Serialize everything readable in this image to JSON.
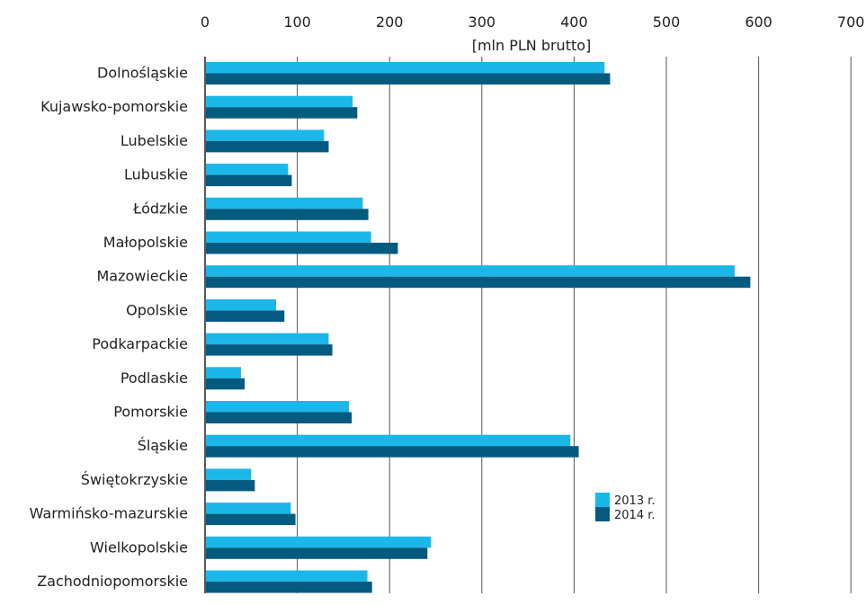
{
  "chart_data": {
    "type": "bar",
    "orientation": "horizontal",
    "title": "",
    "xlabel": "[mln PLN brutto]",
    "ylabel": "",
    "xlim": [
      0,
      700
    ],
    "xticks": [
      0,
      100,
      200,
      300,
      400,
      500,
      600,
      700
    ],
    "grid": true,
    "legend_position": "right",
    "categories": [
      "Dolnośląskie",
      "Kujawsko-pomorskie",
      "Lubelskie",
      "Lubuskie",
      "Łódzkie",
      "Małopolskie",
      "Mazowieckie",
      "Opolskie",
      "Podkarpackie",
      "Podlaskie",
      "Pomorskie",
      "Śląskie",
      "Świętokrzyskie",
      "Warmińsko-mazurskie",
      "Wielkopolskie",
      "Zachodniopomorskie"
    ],
    "series": [
      {
        "name": "2013 r.",
        "color": "#1bb7e8",
        "values": [
          433,
          160,
          129,
          90,
          171,
          180,
          574,
          77,
          134,
          39,
          156,
          396,
          50,
          93,
          245,
          176
        ]
      },
      {
        "name": "2014 r.",
        "color": "#055a80",
        "values": [
          439,
          165,
          134,
          94,
          177,
          209,
          591,
          86,
          138,
          43,
          159,
          405,
          54,
          98,
          241,
          181
        ]
      }
    ]
  }
}
